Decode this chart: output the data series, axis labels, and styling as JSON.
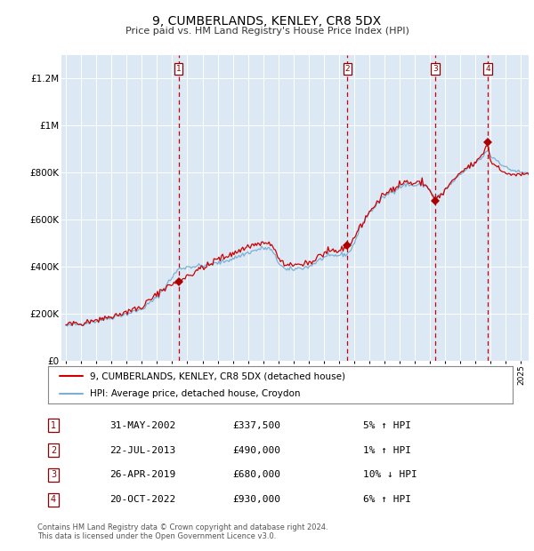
{
  "title": "9, CUMBERLANDS, KENLEY, CR8 5DX",
  "subtitle": "Price paid vs. HM Land Registry's House Price Index (HPI)",
  "bg_color": "#dce9f5",
  "hpi_line_color": "#7ab0d4",
  "price_line_color": "#cc0000",
  "marker_color": "#aa0000",
  "dashed_line_color": "#cc0000",
  "ylim": [
    0,
    1300000
  ],
  "xlim_start": 1994.7,
  "xlim_end": 2025.5,
  "yticks": [
    0,
    200000,
    400000,
    600000,
    800000,
    1000000,
    1200000
  ],
  "ytick_labels": [
    "£0",
    "£200K",
    "£400K",
    "£600K",
    "£800K",
    "£1M",
    "£1.2M"
  ],
  "xticks": [
    1995,
    1996,
    1997,
    1998,
    1999,
    2000,
    2001,
    2002,
    2003,
    2004,
    2005,
    2006,
    2007,
    2008,
    2009,
    2010,
    2011,
    2012,
    2013,
    2014,
    2015,
    2016,
    2017,
    2018,
    2019,
    2020,
    2021,
    2022,
    2023,
    2024,
    2025
  ],
  "sales": [
    {
      "num": 1,
      "date": "31-MAY-2002",
      "price": 337500,
      "pct": "5%",
      "dir": "↑",
      "year": 2002.42
    },
    {
      "num": 2,
      "date": "22-JUL-2013",
      "price": 490000,
      "pct": "1%",
      "dir": "↑",
      "year": 2013.55
    },
    {
      "num": 3,
      "date": "26-APR-2019",
      "price": 680000,
      "pct": "10%",
      "dir": "↓",
      "year": 2019.32
    },
    {
      "num": 4,
      "date": "20-OCT-2022",
      "price": 930000,
      "pct": "6%",
      "dir": "↑",
      "year": 2022.8
    }
  ],
  "legend_line1": "9, CUMBERLANDS, KENLEY, CR8 5DX (detached house)",
  "legend_line2": "HPI: Average price, detached house, Croydon",
  "footer1": "Contains HM Land Registry data © Crown copyright and database right 2024.",
  "footer2": "This data is licensed under the Open Government Licence v3.0."
}
